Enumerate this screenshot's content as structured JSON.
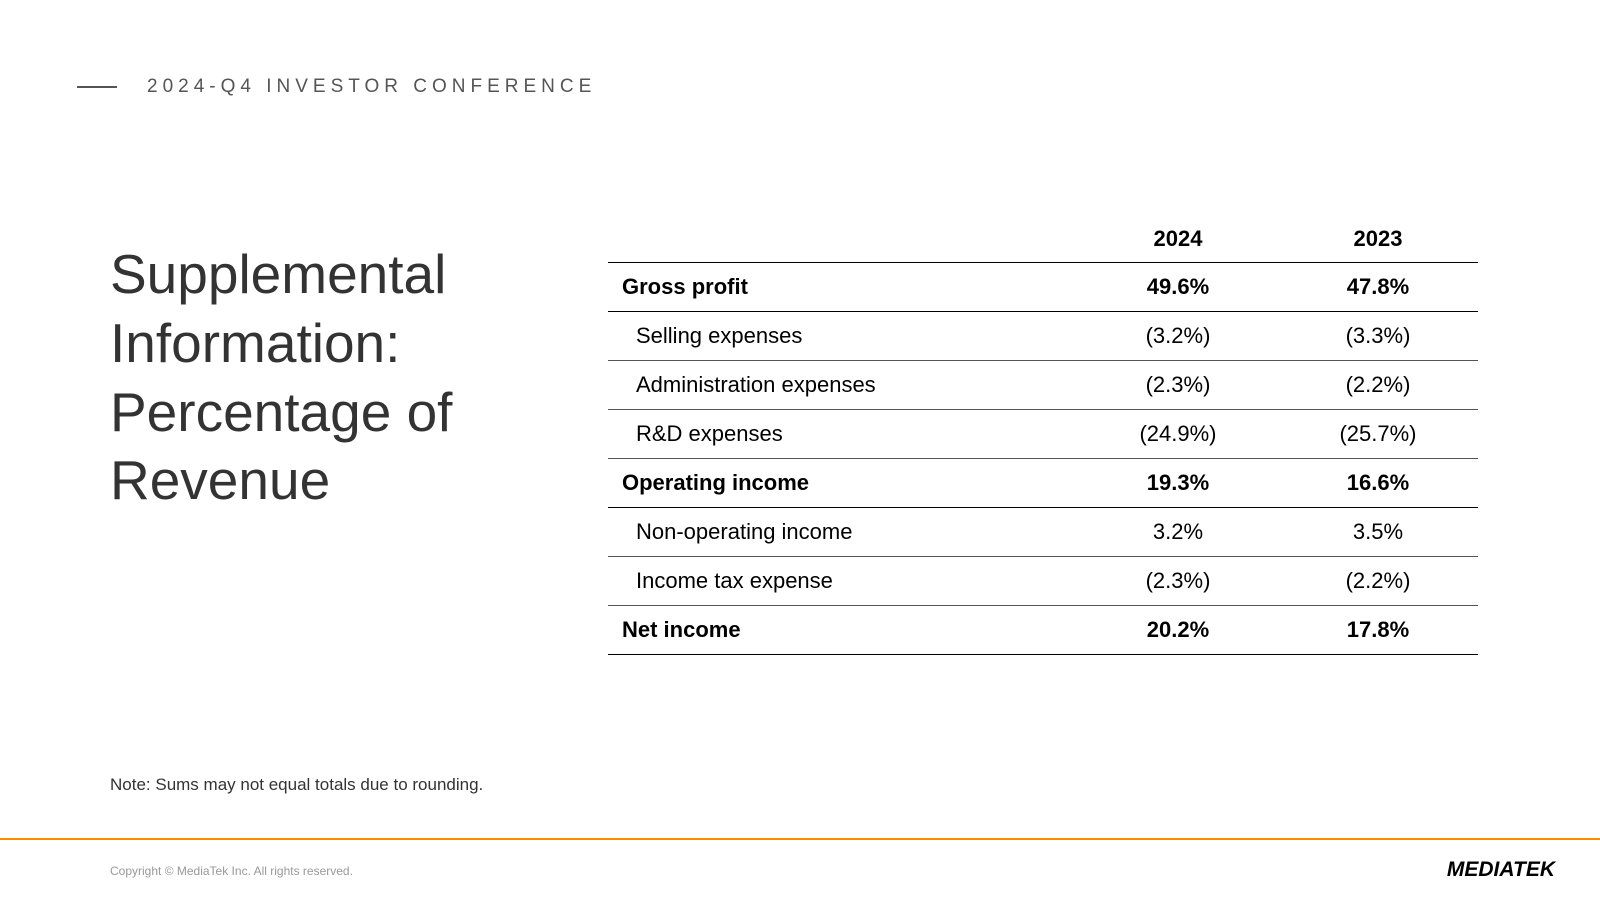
{
  "header": {
    "text": "2024-Q4 INVESTOR CONFERENCE"
  },
  "title": {
    "line1": "Supplemental",
    "line2": "Information:",
    "line3": "Percentage of",
    "line4": "Revenue"
  },
  "table": {
    "columns": [
      "",
      "2024",
      "2023"
    ],
    "rows": [
      {
        "label": "Gross profit",
        "v2024": "49.6%",
        "v2023": "47.8%",
        "bold": true,
        "indent": false
      },
      {
        "label": "Selling expenses",
        "v2024": "(3.2%)",
        "v2023": "(3.3%)",
        "bold": false,
        "indent": true
      },
      {
        "label": "Administration expenses",
        "v2024": "(2.3%)",
        "v2023": "(2.2%)",
        "bold": false,
        "indent": true
      },
      {
        "label": "R&D expenses",
        "v2024": "(24.9%)",
        "v2023": "(25.7%)",
        "bold": false,
        "indent": true
      },
      {
        "label": "Operating income",
        "v2024": "19.3%",
        "v2023": "16.6%",
        "bold": true,
        "indent": false
      },
      {
        "label": "Non-operating income",
        "v2024": "3.2%",
        "v2023": "3.5%",
        "bold": false,
        "indent": true
      },
      {
        "label": "Income tax expense",
        "v2024": "(2.3%)",
        "v2023": "(2.2%)",
        "bold": false,
        "indent": true
      },
      {
        "label": "Net income",
        "v2024": "20.2%",
        "v2023": "17.8%",
        "bold": true,
        "indent": false
      }
    ]
  },
  "note": "Note: Sums may not equal totals due to rounding.",
  "copyright": "Copyright © MediaTek Inc. All rights reserved.",
  "logo": "MEDIATEK",
  "styling": {
    "background_color": "#ffffff",
    "header_text_color": "#555555",
    "header_fontsize": 19,
    "header_letter_spacing": 5,
    "title_fontsize": 55,
    "title_color": "#333333",
    "title_font_weight": 300,
    "table_fontsize": 22,
    "table_border_color": "#000000",
    "table_row_border_color": "#555555",
    "note_fontsize": 17,
    "note_color": "#333333",
    "bottom_line_color": "#ff8800",
    "copyright_fontsize": 12,
    "copyright_color": "#999999",
    "logo_color": "#000000",
    "logo_fontsize": 21
  }
}
